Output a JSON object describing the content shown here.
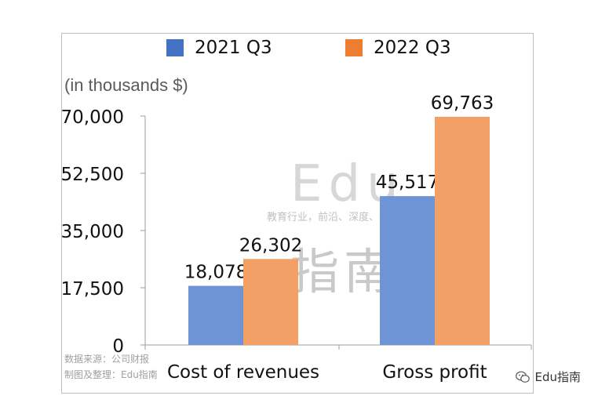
{
  "chart_data": {
    "type": "bar",
    "categories": [
      "Cost of revenues",
      "Gross profit"
    ],
    "series": [
      {
        "name": "2021 Q3",
        "values": [
          18078,
          45517
        ],
        "color": "#6f94d6",
        "swatch": "#4472c4"
      },
      {
        "name": "2022 Q3",
        "values": [
          26302,
          69763
        ],
        "color": "#f2a065",
        "swatch": "#ed7d31"
      }
    ],
    "data_labels": [
      [
        "18,078",
        "45,517"
      ],
      [
        "26,302",
        "69,763"
      ]
    ],
    "ylabel": "(in thousands $)",
    "ylim": [
      0,
      70000
    ],
    "yticks": [
      0,
      17500,
      35000,
      52500,
      70000
    ],
    "ytick_labels": [
      "0",
      "17,500",
      "35,000",
      "52,500",
      "70,000"
    ],
    "legend_position": "top",
    "grid": false
  },
  "watermark": {
    "brand": "Edu",
    "tagline": "教育行业，前沿、深度、独家",
    "cjk": "指南"
  },
  "source": {
    "line1": "数据来源：公司财报",
    "line2": "制图及整理：Edu指南"
  },
  "wechat": {
    "icon": "wechat-icon",
    "label": "Edu指南"
  }
}
